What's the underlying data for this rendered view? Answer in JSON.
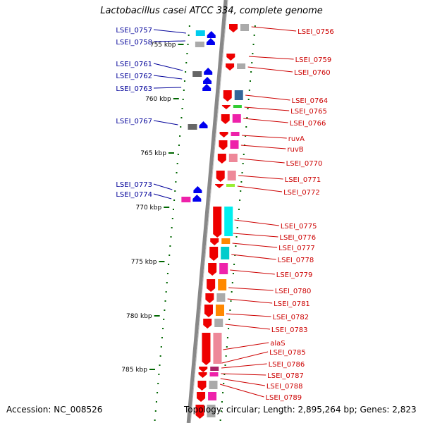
{
  "title": "Lactobacillus casei ATCC 334, complete genome",
  "accession": "Accession: NC_008526",
  "topology": "Topology: circular; Length: 2,895,264 bp; Genes: 2,823",
  "ticks": [
    "755 kbp",
    "760 kbp",
    "765 kbp",
    "770 kbp",
    "775 kbp",
    "780 kbp",
    "785 kbp"
  ],
  "left_genes": [
    "LSEI_0757",
    "LSEI_0758",
    "LSEI_0761",
    "LSEI_0762",
    "LSEI_0763",
    "LSEI_0767",
    "LSEI_0773",
    "LSEI_0774"
  ],
  "right_genes": [
    "LSEI_0756",
    "LSEI_0759",
    "LSEI_0760",
    "LSEI_0764",
    "LSEI_0765",
    "LSEI_0766",
    "ruvA",
    "ruvB",
    "LSEI_0770",
    "LSEI_0771",
    "LSEI_0772",
    "LSEI_0775",
    "LSEI_0776",
    "LSEI_0777",
    "LSEI_0778",
    "LSEI_0779",
    "LSEI_0780",
    "LSEI_0781",
    "LSEI_0782",
    "LSEI_0783",
    "alaS",
    "LSEI_0785",
    "LSEI_0786",
    "LSEI_0787",
    "LSEI_0788",
    "LSEI_0789"
  ],
  "colors": {
    "forward_strand": "#0000ee",
    "reverse_strand": "#ee0000",
    "left_label": "#000099",
    "right_label": "#cc0000",
    "tick": "#006600",
    "backbone": "#888888"
  }
}
